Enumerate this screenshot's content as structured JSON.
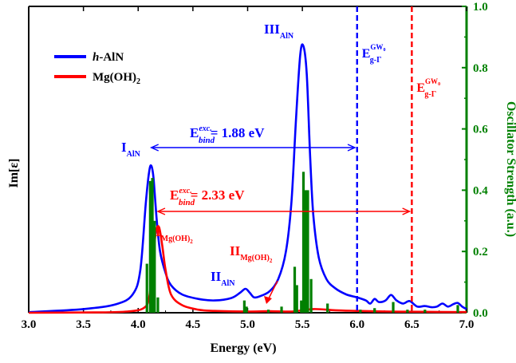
{
  "chart_data": {
    "type": "line",
    "xlabel": "Energy (eV)",
    "ylabel_left": "Im[ε]",
    "ylabel_right": "Oscillator Strength (a.u.)",
    "xlim": [
      3.0,
      7.0
    ],
    "ylim_right": [
      0.0,
      1.0
    ],
    "x_ticks": [
      "3.0",
      "3.5",
      "4.0",
      "4.5",
      "5.0",
      "5.5",
      "6.0",
      "6.5",
      "7.0"
    ],
    "y_right_ticks": [
      "0.0",
      "0.2",
      "0.4",
      "0.6",
      "0.8",
      "1.0"
    ],
    "colors": {
      "hAlN": "#0000ff",
      "MgOH2": "#ff0000",
      "oscillator": "#008000",
      "axis": "#000000"
    },
    "legend": {
      "placement": "top-left",
      "entries": [
        {
          "name_italic": "h",
          "name_rest": "-AlN",
          "color": "#0000ff"
        },
        {
          "name_main": "Mg(OH)",
          "name_sub": "2",
          "color": "#ff0000"
        }
      ]
    },
    "series": [
      {
        "name": "h-AlN",
        "color": "#0000ff",
        "x": [
          3.0,
          3.5,
          3.8,
          3.95,
          4.02,
          4.07,
          4.1,
          4.12,
          4.14,
          4.17,
          4.2,
          4.25,
          4.3,
          4.4,
          4.55,
          4.7,
          4.85,
          4.93,
          4.98,
          5.02,
          5.06,
          5.12,
          5.2,
          5.28,
          5.35,
          5.4,
          5.44,
          5.48,
          5.51,
          5.54,
          5.57,
          5.6,
          5.65,
          5.72,
          5.8,
          5.9,
          6.0,
          6.08,
          6.12,
          6.16,
          6.2,
          6.26,
          6.31,
          6.36,
          6.42,
          6.48,
          6.55,
          6.62,
          6.68,
          6.73,
          6.78,
          6.83,
          6.88,
          6.92,
          6.96,
          7.0
        ],
        "y": [
          0.002,
          0.012,
          0.028,
          0.06,
          0.14,
          0.36,
          0.46,
          0.48,
          0.44,
          0.3,
          0.2,
          0.13,
          0.09,
          0.06,
          0.045,
          0.04,
          0.048,
          0.065,
          0.078,
          0.065,
          0.05,
          0.055,
          0.07,
          0.11,
          0.2,
          0.36,
          0.62,
          0.84,
          0.87,
          0.78,
          0.52,
          0.32,
          0.18,
          0.11,
          0.08,
          0.06,
          0.05,
          0.04,
          0.03,
          0.045,
          0.035,
          0.04,
          0.058,
          0.04,
          0.03,
          0.038,
          0.02,
          0.022,
          0.018,
          0.02,
          0.03,
          0.02,
          0.028,
          0.032,
          0.02,
          0.012
        ]
      },
      {
        "name": "Mg(OH)2",
        "color": "#ff0000",
        "x": [
          3.0,
          3.6,
          3.9,
          4.05,
          4.1,
          4.13,
          4.16,
          4.19,
          4.22,
          4.25,
          4.3,
          4.4,
          4.55,
          4.7,
          5.0,
          5.2,
          5.4,
          5.6,
          5.8,
          6.0,
          6.3,
          6.6,
          7.0
        ],
        "y": [
          0.0,
          0.001,
          0.004,
          0.015,
          0.05,
          0.15,
          0.26,
          0.28,
          0.22,
          0.14,
          0.06,
          0.025,
          0.01,
          0.006,
          0.004,
          0.005,
          0.004,
          0.012,
          0.008,
          0.006,
          0.004,
          0.003,
          0.002
        ]
      }
    ],
    "oscillator_x": [
      4.08,
      4.11,
      4.13,
      4.15,
      4.18,
      4.97,
      4.99,
      5.19,
      5.31,
      5.43,
      5.45,
      5.49,
      5.51,
      5.53,
      5.55,
      5.58,
      5.73,
      6.03,
      6.16,
      6.33,
      6.46,
      6.62,
      6.92
    ],
    "oscillator_y": [
      0.16,
      0.43,
      0.44,
      0.3,
      0.05,
      0.04,
      0.02,
      0.01,
      0.02,
      0.15,
      0.09,
      0.04,
      0.46,
      0.4,
      0.4,
      0.11,
      0.03,
      0.01,
      0.015,
      0.035,
      0.01,
      0.01,
      0.025
    ],
    "vlines": [
      {
        "x": 6.0,
        "color": "#0000ff",
        "label_main": "E",
        "label_sub": "g-Γ",
        "label_sup_main": "GW",
        "label_sup_sub": "0"
      },
      {
        "x": 6.5,
        "color": "#ff0000",
        "label_main": "E",
        "label_sub": "g-Γ",
        "label_sup_main": "GW",
        "label_sup_sub": "0"
      }
    ],
    "arrows": [
      {
        "x1": 4.12,
        "x2": 5.98,
        "color": "#0000ff",
        "label_main": "E",
        "label_sub": "bind",
        "label_sup": "exc.",
        "label_value": "= 1.88 eV"
      },
      {
        "x1": 4.18,
        "x2": 6.48,
        "color": "#ff0000",
        "label_main": "E",
        "label_sub": "bind",
        "label_sup": "exc.",
        "label_value": "= 2.33 eV"
      }
    ],
    "annotations": [
      {
        "main": "I",
        "sub": "AlN",
        "color": "#0000ff"
      },
      {
        "main": "II",
        "sub": "AlN",
        "color": "#0000ff"
      },
      {
        "main": "III",
        "sub": "AlN",
        "color": "#0000ff"
      },
      {
        "main": "I",
        "sub": "Mg(OH)",
        "subsub": "2",
        "color": "#ff0000"
      },
      {
        "main": "II",
        "sub": "Mg(OH)",
        "subsub": "2",
        "color": "#ff0000"
      }
    ]
  }
}
